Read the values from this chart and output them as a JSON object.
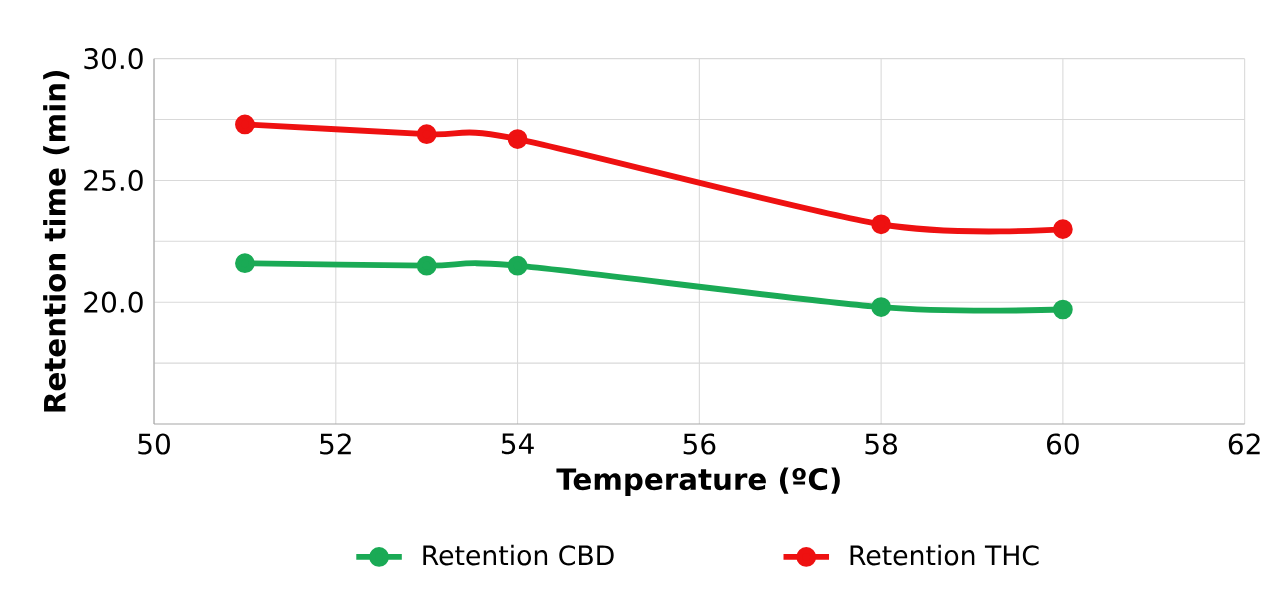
{
  "chart_data": {
    "type": "line",
    "xlabel": "Temperature (ºC)",
    "ylabel": "Retention time (min)",
    "x": [
      51,
      53,
      54,
      58,
      60
    ],
    "series": [
      {
        "name": "Retention CBD",
        "color": "#1aaa55",
        "values": [
          21.6,
          21.5,
          21.5,
          19.8,
          19.7
        ]
      },
      {
        "name": "Retention THC",
        "color": "#ee1111",
        "values": [
          27.3,
          26.9,
          26.7,
          23.2,
          23.0
        ]
      }
    ],
    "xlim": [
      50,
      62
    ],
    "xticks": [
      50,
      52,
      54,
      56,
      58,
      60,
      62
    ],
    "ylim": [
      15,
      30
    ],
    "yticks": [
      {
        "value": 17.5,
        "label": null
      },
      {
        "value": 20,
        "label": "20.0"
      },
      {
        "value": 22.5,
        "label": null
      },
      {
        "value": 25,
        "label": "25.0"
      },
      {
        "value": 27.5,
        "label": null
      },
      {
        "value": 30,
        "label": "30.0"
      }
    ],
    "grid": true,
    "legend": "bottom",
    "marker": "circle",
    "line_style": "solid"
  }
}
